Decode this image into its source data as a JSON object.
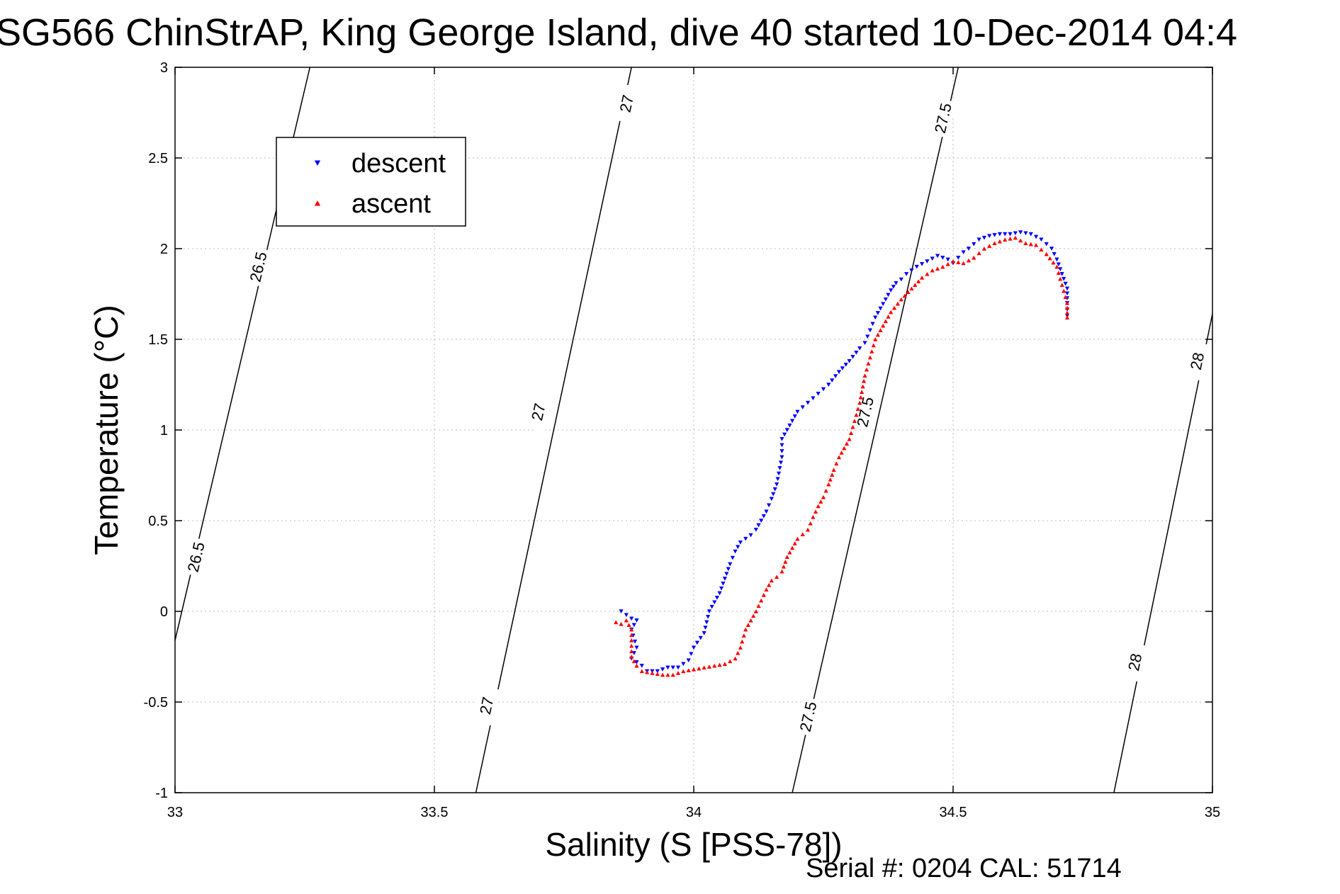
{
  "chart_data": {
    "type": "scatter",
    "title": "SG566 ChinStrAP, King George Island, dive 40 started 10-Dec-2014 04:4",
    "xlabel": "Salinity (S [PSS-78])",
    "ylabel": "Temperature (°C)",
    "xlim": [
      33,
      35
    ],
    "ylim": [
      -1,
      3
    ],
    "x_ticks": [
      "33",
      "33.5",
      "34",
      "34.5",
      "35"
    ],
    "y_ticks": [
      "-1",
      "-0.5",
      "0",
      "0.5",
      "1",
      "1.5",
      "2",
      "2.5",
      "3"
    ],
    "grid": true,
    "legend_position": "top-left",
    "footer": "Serial #: 0204  CAL: 51714",
    "series": [
      {
        "name": "descent",
        "color": "#0000ff",
        "marker": "triangle-down",
        "x": [
          33.86,
          33.87,
          33.88,
          33.89,
          33.88,
          33.89,
          33.88,
          33.9,
          33.91,
          33.92,
          33.93,
          33.95,
          33.97,
          33.99,
          34.0,
          34.02,
          34.03,
          34.04,
          34.05,
          34.06,
          34.07,
          34.08,
          34.09,
          34.1,
          34.11,
          34.12,
          34.13,
          34.14,
          34.15,
          34.16,
          34.17,
          34.17,
          34.18,
          34.19,
          34.2,
          34.22,
          34.24,
          34.26,
          34.28,
          34.3,
          34.32,
          34.33,
          34.34,
          34.35,
          34.36,
          34.37,
          34.38,
          34.39,
          34.4,
          34.41,
          34.43,
          34.45,
          34.47,
          34.49,
          34.5,
          34.51,
          34.52,
          34.53,
          34.55,
          34.57,
          34.59,
          34.61,
          34.63,
          34.65,
          34.67,
          34.69,
          34.7,
          34.71,
          34.72,
          34.72,
          34.72
        ],
        "y": [
          0.0,
          -0.02,
          -0.04,
          -0.05,
          -0.1,
          -0.2,
          -0.26,
          -0.3,
          -0.33,
          -0.33,
          -0.33,
          -0.31,
          -0.31,
          -0.27,
          -0.2,
          -0.12,
          0.0,
          0.05,
          0.1,
          0.18,
          0.26,
          0.33,
          0.38,
          0.4,
          0.42,
          0.45,
          0.5,
          0.55,
          0.62,
          0.7,
          0.85,
          0.95,
          1.0,
          1.05,
          1.1,
          1.15,
          1.2,
          1.25,
          1.32,
          1.38,
          1.45,
          1.48,
          1.55,
          1.62,
          1.67,
          1.72,
          1.77,
          1.81,
          1.83,
          1.86,
          1.9,
          1.93,
          1.96,
          1.94,
          1.92,
          1.95,
          1.98,
          2.0,
          2.05,
          2.07,
          2.08,
          2.08,
          2.09,
          2.08,
          2.05,
          2.0,
          1.94,
          1.86,
          1.78,
          1.7,
          1.63
        ]
      },
      {
        "name": "ascent",
        "color": "#ff0000",
        "marker": "triangle-up",
        "x": [
          33.85,
          33.86,
          33.87,
          33.88,
          33.88,
          33.89,
          33.9,
          33.92,
          33.94,
          33.96,
          33.98,
          34.0,
          34.02,
          34.04,
          34.06,
          34.08,
          34.09,
          34.1,
          34.11,
          34.12,
          34.13,
          34.14,
          34.15,
          34.16,
          34.17,
          34.18,
          34.19,
          34.2,
          34.22,
          34.23,
          34.24,
          34.25,
          34.26,
          34.27,
          34.28,
          34.29,
          34.3,
          34.31,
          34.32,
          34.33,
          34.34,
          34.35,
          34.36,
          34.37,
          34.38,
          34.4,
          34.42,
          34.44,
          34.46,
          34.48,
          34.5,
          34.52,
          34.54,
          34.56,
          34.58,
          34.6,
          34.62,
          34.64,
          34.66,
          34.68,
          34.7,
          34.71,
          34.72,
          34.72
        ],
        "y": [
          -0.06,
          -0.07,
          -0.05,
          -0.1,
          -0.25,
          -0.3,
          -0.33,
          -0.34,
          -0.35,
          -0.35,
          -0.33,
          -0.32,
          -0.31,
          -0.3,
          -0.29,
          -0.26,
          -0.2,
          -0.1,
          -0.05,
          0.0,
          0.06,
          0.12,
          0.17,
          0.19,
          0.22,
          0.3,
          0.35,
          0.4,
          0.45,
          0.52,
          0.58,
          0.63,
          0.7,
          0.78,
          0.85,
          0.9,
          0.95,
          1.05,
          1.15,
          1.3,
          1.4,
          1.5,
          1.55,
          1.6,
          1.65,
          1.72,
          1.78,
          1.84,
          1.88,
          1.9,
          1.93,
          1.92,
          1.95,
          2.0,
          2.03,
          2.05,
          2.06,
          2.03,
          2.02,
          1.97,
          1.9,
          1.8,
          1.7,
          1.62
        ]
      }
    ],
    "contours": [
      {
        "label": "26.5",
        "x": [
          33.0,
          33.26
        ],
        "y": [
          -0.16,
          3.0
        ]
      },
      {
        "label": "27",
        "x": [
          33.58,
          33.88
        ],
        "y": [
          -1.0,
          3.0
        ]
      },
      {
        "label": "27.5",
        "x": [
          34.19,
          34.51
        ],
        "y": [
          -1.0,
          3.0
        ]
      },
      {
        "label": "28",
        "x": [
          34.81,
          35.0
        ],
        "y": [
          -1.0,
          1.64
        ]
      }
    ],
    "contour_labels": [
      {
        "text": "26.5",
        "x": 33.04,
        "y": 0.3
      },
      {
        "text": "26.5",
        "x": 33.16,
        "y": 1.9
      },
      {
        "text": "27",
        "x": 33.6,
        "y": -0.52
      },
      {
        "text": "27",
        "x": 33.7,
        "y": 1.1
      },
      {
        "text": "27",
        "x": 33.87,
        "y": 2.8
      },
      {
        "text": "27.5",
        "x": 34.22,
        "y": -0.58
      },
      {
        "text": "27.5",
        "x": 34.33,
        "y": 1.1
      },
      {
        "text": "27.5",
        "x": 34.48,
        "y": 2.72
      },
      {
        "text": "28",
        "x": 34.85,
        "y": -0.28
      },
      {
        "text": "28",
        "x": 34.97,
        "y": 1.38
      }
    ]
  }
}
